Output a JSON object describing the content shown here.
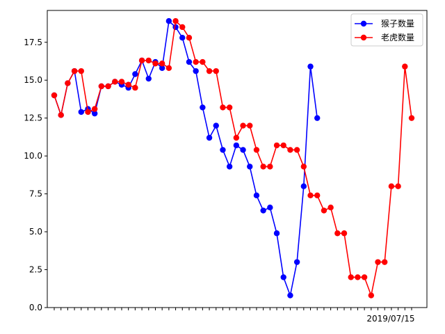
{
  "chart_data": {
    "type": "line",
    "title": "",
    "xlabel": "",
    "ylabel": "",
    "ylim": [
      0,
      19.6
    ],
    "yticks": [
      0.0,
      2.5,
      5.0,
      7.5,
      10.0,
      12.5,
      15.0,
      17.5
    ],
    "ytick_labels": [
      "0.0",
      "2.5",
      "5.0",
      "7.5",
      "10.0",
      "12.5",
      "15.0",
      "17.5"
    ],
    "xtick_count": 54,
    "xtick_labels_visible": [
      "2019/07/15"
    ],
    "grid": false,
    "legend_position": "top-right",
    "series": [
      {
        "name": "猴子数量",
        "color": "#0000ff",
        "values": [
          14.0,
          12.7,
          14.8,
          15.6,
          12.9,
          13.1,
          12.8,
          14.6,
          14.6,
          14.9,
          14.7,
          14.5,
          15.4,
          16.3,
          15.1,
          16.2,
          15.8,
          18.9,
          18.5,
          17.8,
          16.2,
          15.6,
          13.2,
          11.2,
          12.0,
          10.4,
          9.3,
          10.7,
          10.4,
          9.3,
          7.4,
          6.4,
          6.6,
          4.9,
          2.0,
          0.8,
          3.0,
          8.0,
          15.9,
          12.5
        ]
      },
      {
        "name": "老虎数量",
        "color": "#ff0000",
        "start_index": 0,
        "values": [
          14.0,
          12.7,
          14.8,
          15.6,
          15.6,
          12.9,
          13.1,
          14.6,
          14.6,
          14.9,
          14.9,
          14.7,
          14.5,
          16.3,
          16.3,
          16.1,
          16.1,
          15.8,
          18.9,
          18.5,
          17.8,
          16.2,
          16.2,
          15.6,
          15.6,
          13.2,
          13.2,
          11.2,
          12.0,
          12.0,
          10.4,
          9.3,
          9.3,
          10.7,
          10.7,
          10.4,
          10.4,
          9.3,
          7.4,
          7.4,
          6.4,
          6.6,
          4.9,
          4.9,
          2.0,
          2.0,
          2.0,
          0.8,
          3.0,
          3.0,
          8.0,
          8.0,
          15.9,
          12.5
        ]
      }
    ]
  }
}
